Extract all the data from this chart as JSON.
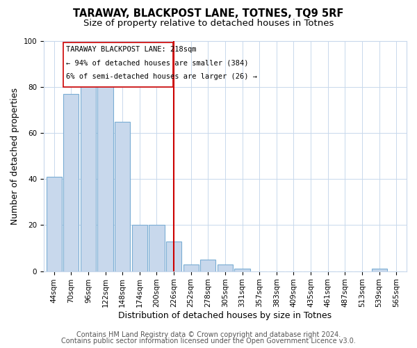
{
  "title": "TARAWAY, BLACKPOST LANE, TOTNES, TQ9 5RF",
  "subtitle": "Size of property relative to detached houses in Totnes",
  "xlabel": "Distribution of detached houses by size in Totnes",
  "ylabel": "Number of detached properties",
  "categories": [
    "44sqm",
    "70sqm",
    "96sqm",
    "122sqm",
    "148sqm",
    "174sqm",
    "200sqm",
    "226sqm",
    "252sqm",
    "278sqm",
    "305sqm",
    "331sqm",
    "357sqm",
    "383sqm",
    "409sqm",
    "435sqm",
    "461sqm",
    "487sqm",
    "513sqm",
    "539sqm",
    "565sqm"
  ],
  "values": [
    41,
    77,
    84,
    83,
    65,
    20,
    20,
    13,
    3,
    5,
    3,
    1,
    0,
    0,
    0,
    0,
    0,
    0,
    0,
    1,
    0
  ],
  "bar_color": "#c8d8ec",
  "bar_edge_color": "#7aadd4",
  "marker_line_color": "#cc0000",
  "annotation_line1": "TARAWAY BLACKPOST LANE: 218sqm",
  "annotation_line2": "← 94% of detached houses are smaller (384)",
  "annotation_line3": "6% of semi-detached houses are larger (26) →",
  "annotation_box_edge_color": "#cc0000",
  "ylim": [
    0,
    100
  ],
  "footer1": "Contains HM Land Registry data © Crown copyright and database right 2024.",
  "footer2": "Contains public sector information licensed under the Open Government Licence v3.0.",
  "background_color": "#ffffff",
  "plot_background_color": "#ffffff",
  "grid_color": "#c8d8ec",
  "title_fontsize": 10.5,
  "subtitle_fontsize": 9.5,
  "axis_label_fontsize": 9,
  "tick_fontsize": 7.5,
  "footer_fontsize": 7
}
